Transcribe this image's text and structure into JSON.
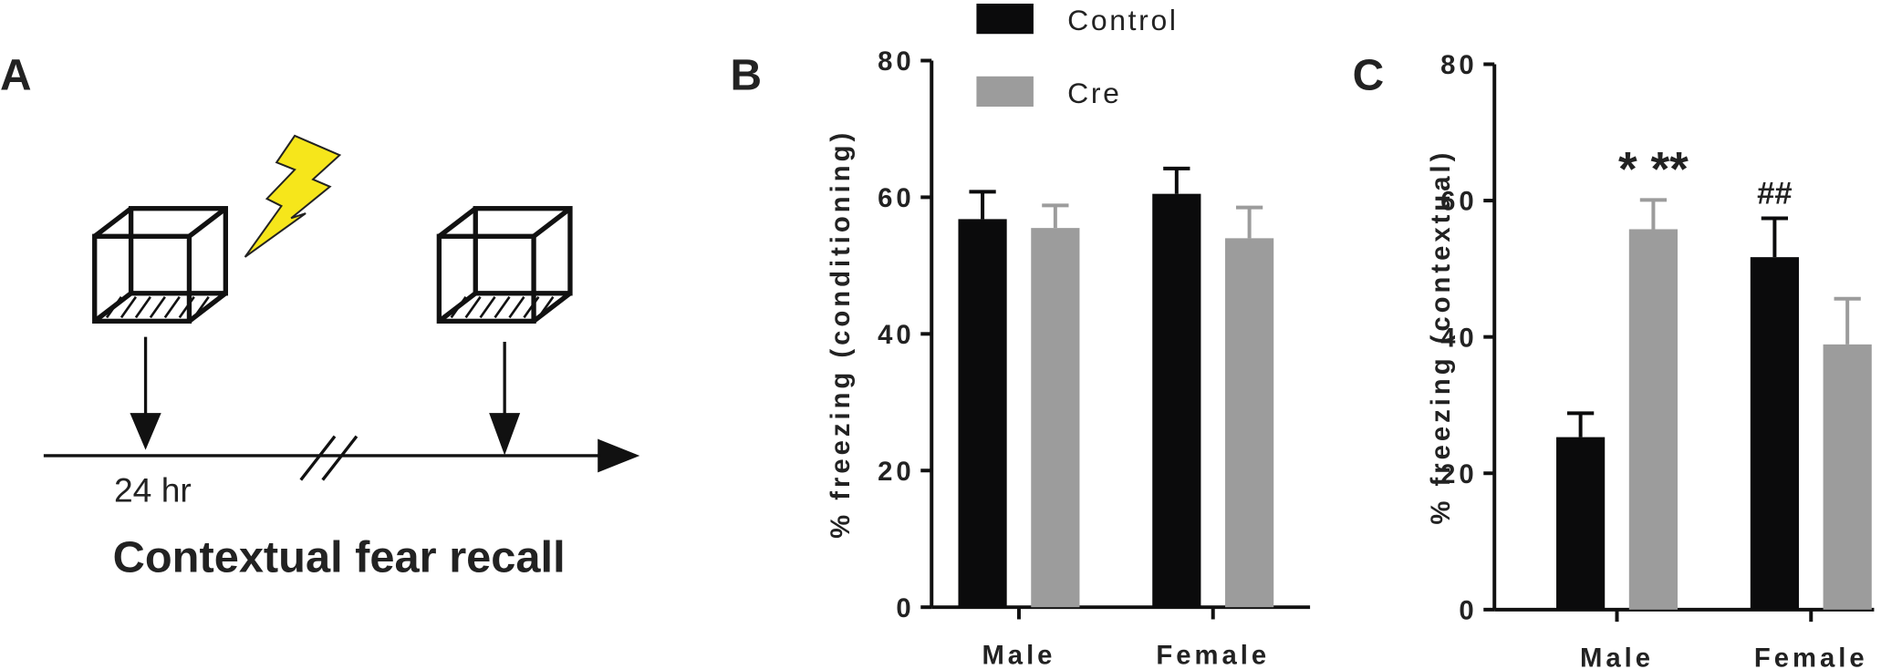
{
  "diagram": {
    "label": "A",
    "time_label": "24 hr",
    "title": "Contextual fear recall"
  },
  "chart_data": [
    {
      "type": "bar",
      "label": "B",
      "ylabel": "% freezing (conditioning)",
      "categories": [
        "Male",
        "Female"
      ],
      "ylim": [
        0,
        80
      ],
      "yticks": [
        0,
        20,
        40,
        60,
        80
      ],
      "series": [
        {
          "name": "Control",
          "color": "#0b0b0c",
          "values": [
            56.8,
            60.5
          ],
          "errors": [
            4.0,
            3.7
          ]
        },
        {
          "name": "Cre",
          "color": "#9c9c9c",
          "values": [
            55.5,
            54.0
          ],
          "errors": [
            3.3,
            4.5
          ]
        }
      ]
    },
    {
      "type": "bar",
      "label": "C",
      "ylabel": "% freezing (contextual)",
      "categories": [
        "Male",
        "Female"
      ],
      "ylim": [
        0,
        80
      ],
      "yticks": [
        0,
        20,
        40,
        60,
        80
      ],
      "series": [
        {
          "color": "#0b0b0c",
          "values": [
            25.3,
            51.7
          ],
          "errors": [
            3.5,
            5.7
          ]
        },
        {
          "color": "#9c9c9c",
          "values": [
            55.8,
            38.9
          ],
          "errors": [
            4.3,
            6.7
          ]
        }
      ],
      "annotations": [
        "* **",
        "##"
      ]
    }
  ]
}
